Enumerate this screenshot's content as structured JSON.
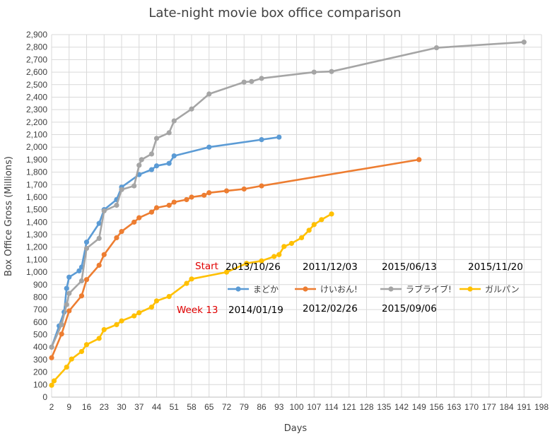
{
  "chart_data": {
    "type": "line",
    "title": "Late-night movie box office comparison",
    "xlabel": "Days",
    "ylabel": "Box Office Gross (Millions)",
    "xlim": [
      2,
      198
    ],
    "ylim": [
      0,
      2900
    ],
    "x_ticks": [
      2,
      9,
      16,
      23,
      30,
      37,
      44,
      51,
      58,
      65,
      72,
      79,
      86,
      93,
      100,
      107,
      114,
      121,
      128,
      135,
      142,
      149,
      156,
      163,
      170,
      177,
      184,
      191,
      198
    ],
    "y_ticks": [
      0,
      100,
      200,
      300,
      400,
      500,
      600,
      700,
      800,
      900,
      1000,
      1100,
      1200,
      1300,
      1400,
      1500,
      1600,
      1700,
      1800,
      1900,
      2000,
      2100,
      2200,
      2300,
      2400,
      2500,
      2600,
      2700,
      2800,
      2900
    ],
    "y_tick_labels": [
      "0",
      "100",
      "200",
      "300",
      "400",
      "500",
      "600",
      "700",
      "800",
      "900",
      "1,000",
      "1,100",
      "1,200",
      "1,300",
      "1,400",
      "1,500",
      "1,600",
      "1,700",
      "1,800",
      "1,900",
      "2,000",
      "2,100",
      "2,200",
      "2,300",
      "2,400",
      "2,500",
      "2,600",
      "2,700",
      "2,800",
      "2,900"
    ],
    "grid": true,
    "legend_position": "center-right",
    "series": [
      {
        "name": "まどか",
        "color": "#5b9bd5",
        "x": [
          2,
          5,
          7,
          8,
          9,
          13,
          14,
          16,
          21,
          23,
          28,
          30,
          37,
          42,
          44,
          49,
          51,
          65,
          86,
          93
        ],
        "y": [
          400,
          570,
          680,
          870,
          960,
          1010,
          1040,
          1240,
          1390,
          1500,
          1580,
          1680,
          1780,
          1820,
          1850,
          1870,
          1930,
          2000,
          2060,
          2080
        ]
      },
      {
        "name": "けいおん!",
        "color": "#ed7d31",
        "x": [
          2,
          6,
          9,
          14,
          16,
          21,
          23,
          28,
          30,
          35,
          37,
          42,
          44,
          49,
          51,
          56,
          58,
          63,
          65,
          72,
          79,
          86,
          149
        ],
        "y": [
          315,
          505,
          690,
          810,
          940,
          1055,
          1140,
          1275,
          1325,
          1400,
          1435,
          1480,
          1515,
          1535,
          1560,
          1580,
          1600,
          1615,
          1635,
          1650,
          1665,
          1690,
          1900
        ]
      },
      {
        "name": "ラブライブ!",
        "color": "#a5a5a5",
        "x": [
          2,
          6,
          8,
          9,
          14,
          16,
          21,
          23,
          28,
          30,
          35,
          37,
          38,
          42,
          44,
          49,
          51,
          58,
          65,
          79,
          82,
          86,
          107,
          114,
          156,
          191
        ],
        "y": [
          400,
          580,
          740,
          830,
          930,
          1190,
          1270,
          1490,
          1535,
          1660,
          1690,
          1855,
          1900,
          1945,
          2070,
          2115,
          2210,
          2305,
          2425,
          2520,
          2525,
          2550,
          2600,
          2605,
          2795,
          2840
        ]
      },
      {
        "name": "ガルパン",
        "color": "#ffc000",
        "x": [
          2,
          3,
          8,
          10,
          14,
          16,
          21,
          23,
          28,
          30,
          35,
          37,
          42,
          44,
          49,
          56,
          58,
          72,
          80,
          86,
          91,
          93,
          95,
          98,
          102,
          105,
          107,
          110,
          114
        ],
        "y": [
          95,
          130,
          240,
          305,
          365,
          420,
          470,
          540,
          580,
          610,
          650,
          675,
          720,
          770,
          805,
          910,
          945,
          1000,
          1070,
          1090,
          1125,
          1140,
          1205,
          1230,
          1275,
          1335,
          1380,
          1420,
          1465
        ]
      }
    ],
    "annotations": {
      "start_label": "Start",
      "week13_label": "Week 13",
      "start_dates": [
        "2013/10/26",
        "2011/12/03",
        "2015/06/13",
        "2015/11/20"
      ],
      "week13_dates": [
        "2014/01/19",
        "2012/02/26",
        "2015/09/06"
      ]
    }
  }
}
